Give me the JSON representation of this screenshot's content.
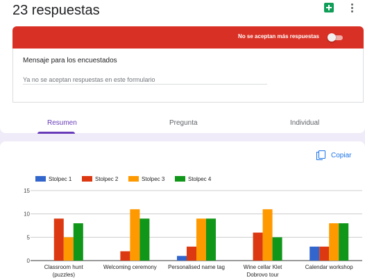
{
  "header": {
    "title": "23 respuestas"
  },
  "banner": {
    "text": "No se aceptan más respuestas",
    "accepting_responses": false
  },
  "message": {
    "label": "Mensaje para los encuestados",
    "value": "Ya no se aceptan respuestas en este formulario"
  },
  "tabs": [
    {
      "label": "Resumen",
      "active": true
    },
    {
      "label": "Pregunta",
      "active": false
    },
    {
      "label": "Individual",
      "active": false
    }
  ],
  "copy_button": {
    "label": "Copiar"
  },
  "colors": {
    "accent": "#673ab7",
    "banner_red": "#d93025",
    "link_blue": "#1a73e8",
    "sheets_green": "#0f9d58"
  },
  "chart_data": {
    "type": "bar",
    "categories": [
      "Classroom hunt (puzzles)",
      "Welcoming ceremony",
      "Personalised name tag",
      "Wine cellar Klet Dobrovo tour",
      "Calendar workshop"
    ],
    "category_lines": [
      [
        "Classroom hunt",
        "(puzzles)"
      ],
      [
        "Welcoming ceremony"
      ],
      [
        "Personalised name tag"
      ],
      [
        "Wine cellar Klet",
        "Dobrovo tour"
      ],
      [
        "Calendar workshop"
      ]
    ],
    "series": [
      {
        "name": "Stolpec 1",
        "color": "#3366cc",
        "values": [
          0,
          0,
          1,
          0,
          3
        ]
      },
      {
        "name": "Stolpec 2",
        "color": "#dc3912",
        "values": [
          9,
          2,
          3,
          6,
          3
        ]
      },
      {
        "name": "Stolpec 3",
        "color": "#ff9900",
        "values": [
          5,
          11,
          9,
          11,
          8
        ]
      },
      {
        "name": "Stolpec 4",
        "color": "#109618",
        "values": [
          8,
          9,
          9,
          5,
          8
        ]
      }
    ],
    "yticks": [
      "0",
      "5",
      "10",
      "15"
    ],
    "ylim": [
      0,
      15
    ],
    "legend_position": "top-left",
    "grid": true
  }
}
